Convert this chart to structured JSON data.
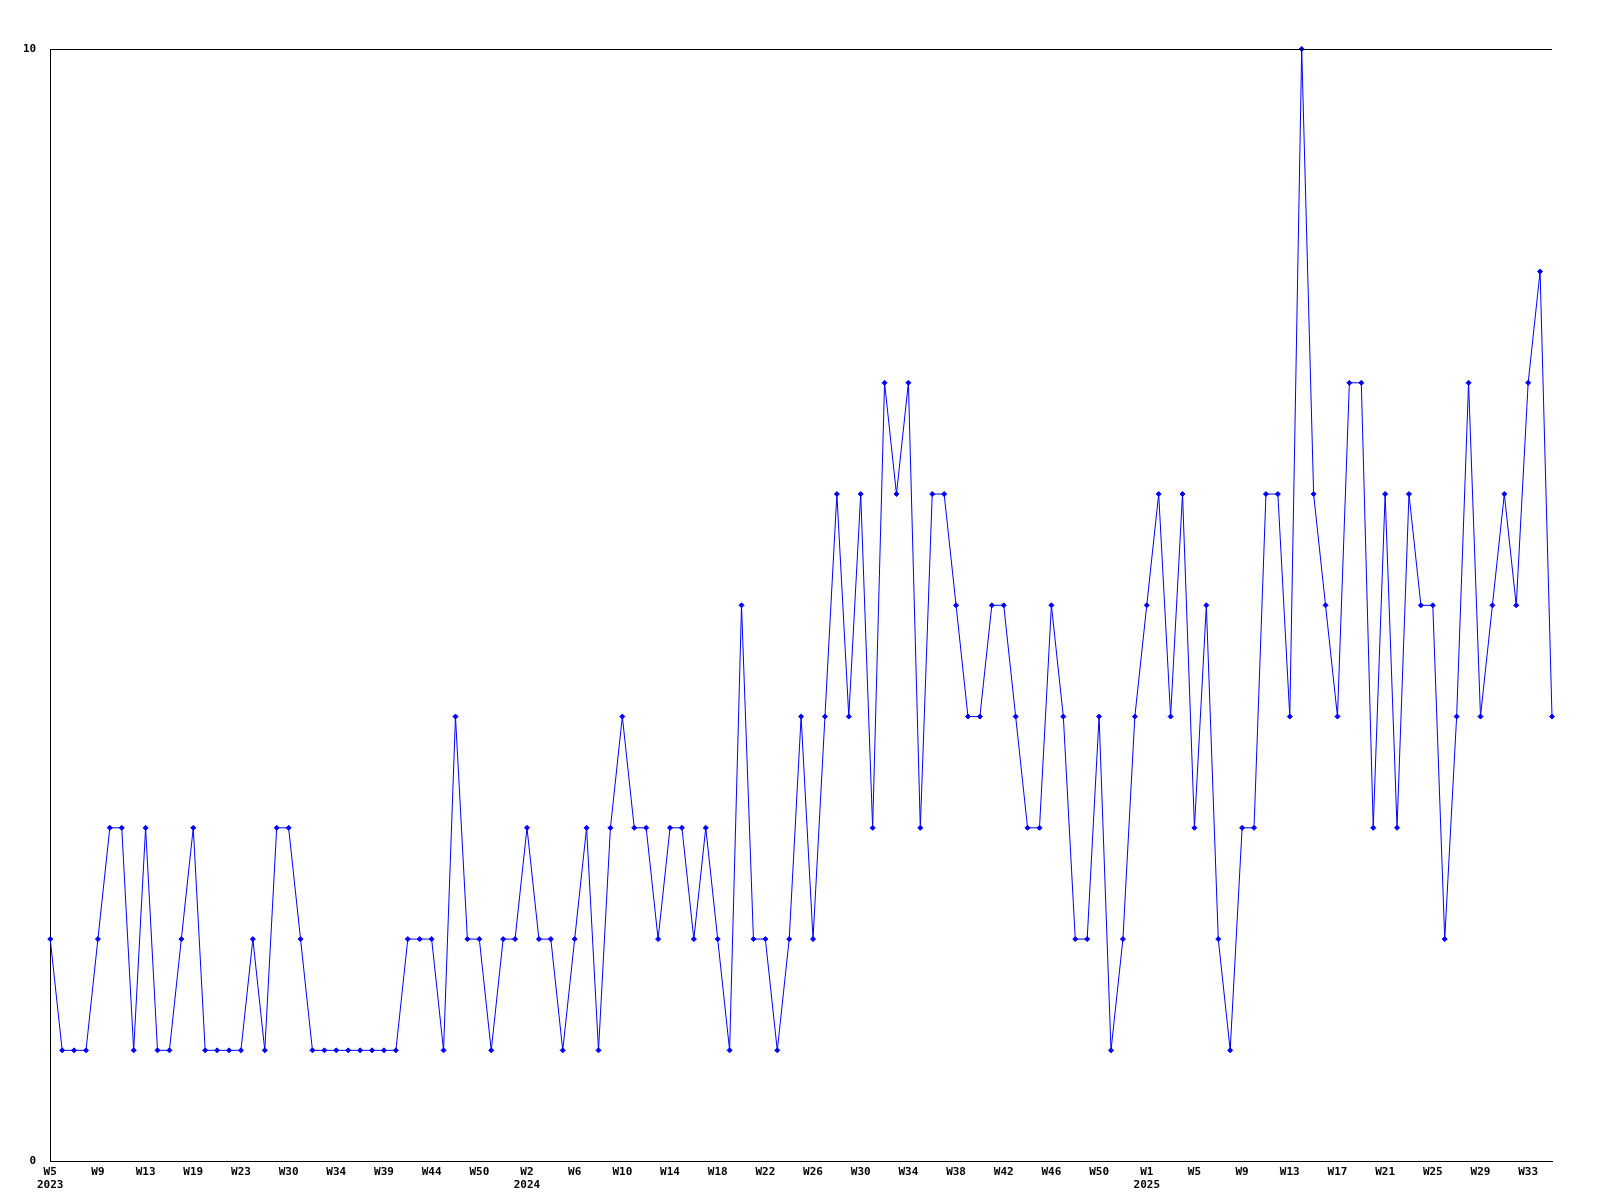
{
  "chart_data": {
    "type": "line",
    "categories": [
      "W5\n2023",
      null,
      null,
      null,
      "W9",
      null,
      null,
      null,
      "W13",
      null,
      null,
      null,
      "W19",
      null,
      null,
      null,
      "W23",
      null,
      null,
      null,
      "W30",
      null,
      null,
      null,
      "W34",
      null,
      null,
      null,
      "W39",
      null,
      null,
      null,
      "W44",
      null,
      null,
      null,
      "W50",
      null,
      null,
      null,
      "W2\n2024",
      null,
      null,
      null,
      "W6",
      null,
      null,
      null,
      "W10",
      null,
      null,
      null,
      "W14",
      null,
      null,
      null,
      "W18",
      null,
      null,
      null,
      "W22",
      null,
      null,
      null,
      "W26",
      null,
      null,
      null,
      "W30",
      null,
      null,
      null,
      "W34",
      null,
      null,
      null,
      "W38",
      null,
      null,
      null,
      "W42",
      null,
      null,
      null,
      "W46",
      null,
      null,
      null,
      "W50",
      null,
      null,
      null,
      "W1\n2025",
      null,
      null,
      null,
      "W5",
      null,
      null,
      null,
      "W9",
      null,
      null,
      null,
      "W13",
      null,
      null,
      null,
      "W17",
      null,
      null,
      null,
      "W21",
      null,
      null,
      null,
      "W25",
      null,
      null,
      null,
      "W29",
      null,
      null,
      null,
      "W33",
      null,
      null
    ],
    "series": [
      {
        "color": "#0000ff",
        "values": [
          2,
          1,
          1,
          1,
          2,
          3,
          3,
          1,
          3,
          1,
          1,
          2,
          3,
          1,
          1,
          1,
          1,
          2,
          1,
          3,
          3,
          2,
          1,
          1,
          1,
          1,
          1,
          1,
          1,
          1,
          2,
          2,
          2,
          1,
          4,
          2,
          2,
          1,
          2,
          2,
          3,
          2,
          2,
          1,
          2,
          3,
          1,
          3,
          4,
          3,
          3,
          2,
          3,
          3,
          2,
          3,
          2,
          1,
          5,
          2,
          2,
          1,
          2,
          4,
          2,
          4,
          6,
          4,
          6,
          3,
          7,
          6,
          7,
          3,
          6,
          6,
          5,
          4,
          4,
          5,
          5,
          4,
          3,
          3,
          5,
          4,
          2,
          2,
          4,
          1,
          2,
          4,
          5,
          6,
          4,
          6,
          3,
          5,
          2,
          1,
          3,
          3,
          6,
          6,
          4,
          10,
          6,
          5,
          4,
          7,
          7,
          3,
          6,
          3,
          6,
          5,
          5,
          2,
          4,
          7,
          4,
          5,
          6,
          5,
          7,
          8,
          4
        ]
      }
    ],
    "ylim": [
      0,
      10
    ],
    "yticks": [
      0,
      10
    ],
    "grid": false,
    "legend": false,
    "marker": "diamond",
    "line_style": "solid"
  }
}
